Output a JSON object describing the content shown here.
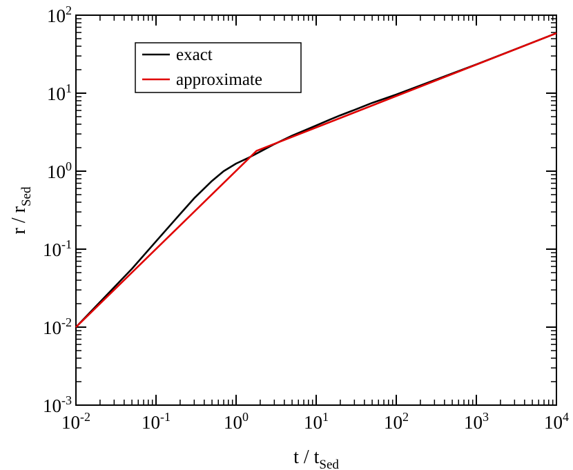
{
  "chart_data": {
    "type": "line",
    "x_scale": "log",
    "y_scale": "log",
    "xlim": [
      0.01,
      10000
    ],
    "ylim": [
      0.001,
      100
    ],
    "x_ticks": [
      {
        "base": "10",
        "exp": "-2",
        "value": 0.01
      },
      {
        "base": "10",
        "exp": "-1",
        "value": 0.1
      },
      {
        "base": "10",
        "exp": "0",
        "value": 1
      },
      {
        "base": "10",
        "exp": "1",
        "value": 10
      },
      {
        "base": "10",
        "exp": "2",
        "value": 100
      },
      {
        "base": "10",
        "exp": "3",
        "value": 1000
      },
      {
        "base": "10",
        "exp": "4",
        "value": 10000
      }
    ],
    "y_ticks": [
      {
        "base": "10",
        "exp": "-3",
        "value": 0.001
      },
      {
        "base": "10",
        "exp": "-2",
        "value": 0.01
      },
      {
        "base": "10",
        "exp": "-1",
        "value": 0.1
      },
      {
        "base": "10",
        "exp": "0",
        "value": 1
      },
      {
        "base": "10",
        "exp": "1",
        "value": 10
      },
      {
        "base": "10",
        "exp": "2",
        "value": 100
      }
    ],
    "xlabel": {
      "main": "t / t",
      "sub": "Sed"
    },
    "ylabel": {
      "main": "r / r",
      "sub": "Sed"
    },
    "legend_position": "top-left",
    "grid": false,
    "series": [
      {
        "name": "exact",
        "color": "#000000",
        "x": [
          0.01,
          0.05,
          0.1,
          0.2,
          0.3,
          0.5,
          0.7,
          1.0,
          1.4,
          2.0,
          3.0,
          5.0,
          7.0,
          10,
          15,
          20,
          30,
          50,
          100,
          1000,
          10000
        ],
        "y": [
          0.01,
          0.056,
          0.126,
          0.282,
          0.45,
          0.75,
          1.0,
          1.25,
          1.47,
          1.78,
          2.22,
          2.85,
          3.3,
          3.85,
          4.6,
          5.2,
          6.1,
          7.5,
          9.6,
          23.4,
          58.8
        ]
      },
      {
        "name": "approximate",
        "color": "#e00000",
        "x": [
          0.01,
          1.8,
          10000
        ],
        "y": [
          0.01,
          1.82,
          58.8
        ]
      }
    ]
  }
}
